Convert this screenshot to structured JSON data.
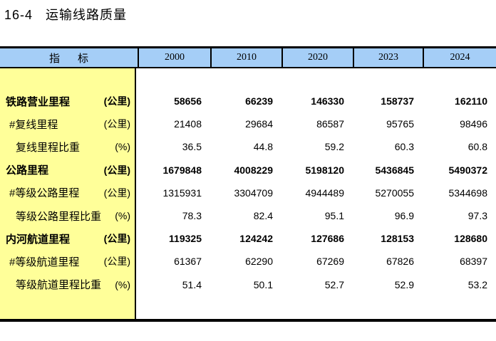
{
  "page": {
    "title": "16-4   运输线路质量"
  },
  "table": {
    "indicator_header": "指      标",
    "years": [
      "2000",
      "2010",
      "2020",
      "2023",
      "2024"
    ],
    "rows": [
      {
        "label": "铁路营业里程",
        "unit": "(公里)",
        "bold": true,
        "indent": 0,
        "values": [
          "58656",
          "66239",
          "146330",
          "158737",
          "162110"
        ]
      },
      {
        "label": "#复线里程",
        "unit": "(公里)",
        "bold": false,
        "indent": 1,
        "values": [
          "21408",
          "29684",
          "86587",
          "95765",
          "98496"
        ]
      },
      {
        "label": "复线里程比重",
        "unit": "(%)",
        "bold": false,
        "indent": 2,
        "values": [
          "36.5",
          "44.8",
          "59.2",
          "60.3",
          "60.8"
        ]
      },
      {
        "label": "公路里程",
        "unit": "(公里)",
        "bold": true,
        "indent": 0,
        "values": [
          "1679848",
          "4008229",
          "5198120",
          "5436845",
          "5490372"
        ]
      },
      {
        "label": "#等级公路里程",
        "unit": "(公里)",
        "bold": false,
        "indent": 1,
        "values": [
          "1315931",
          "3304709",
          "4944489",
          "5270055",
          "5344698"
        ]
      },
      {
        "label": "等级公路里程比重",
        "unit": "(%)",
        "bold": false,
        "indent": 2,
        "values": [
          "78.3",
          "82.4",
          "95.1",
          "96.9",
          "97.3"
        ]
      },
      {
        "label": "内河航道里程",
        "unit": "(公里)",
        "bold": true,
        "indent": 0,
        "values": [
          "119325",
          "124242",
          "127686",
          "128153",
          "128680"
        ]
      },
      {
        "label": "#等级航道里程",
        "unit": "(公里)",
        "bold": false,
        "indent": 1,
        "values": [
          "61367",
          "62290",
          "67269",
          "67826",
          "68397"
        ]
      },
      {
        "label": "等级航道里程比重",
        "unit": "(%)",
        "bold": false,
        "indent": 2,
        "values": [
          "51.4",
          "50.1",
          "52.7",
          "52.9",
          "53.2"
        ]
      }
    ]
  },
  "colors": {
    "header_bg": "#A5CEF7",
    "indicator_bg": "#FFFF99",
    "border": "#000000",
    "text": "#000000"
  }
}
